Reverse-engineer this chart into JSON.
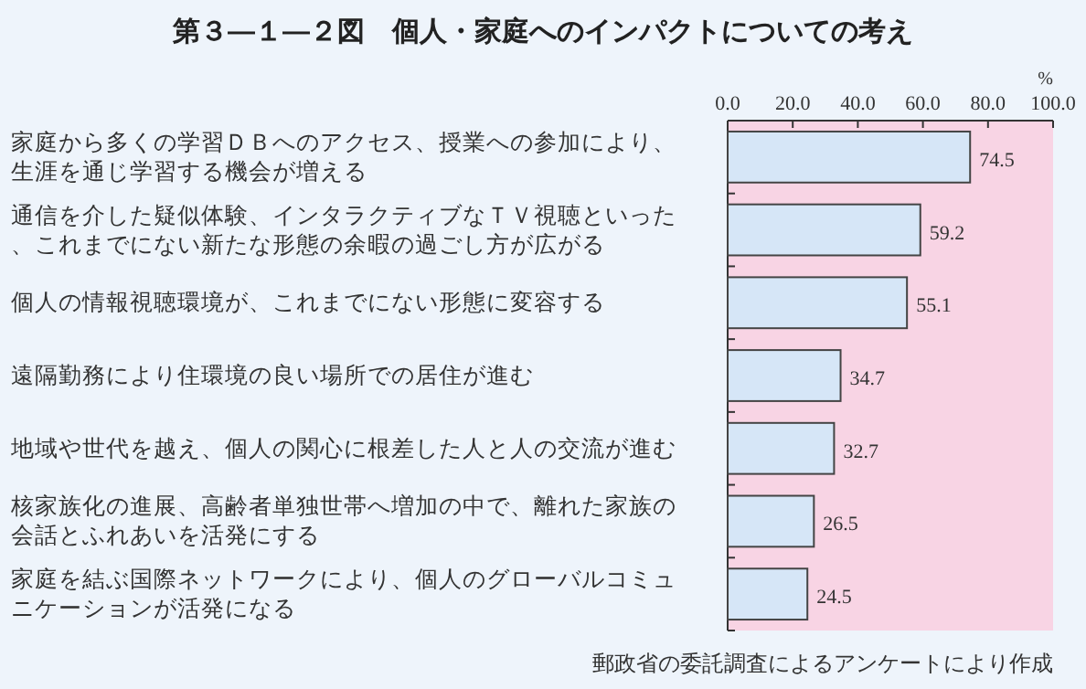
{
  "chart_data": {
    "type": "bar",
    "orientation": "horizontal",
    "title": "第３―１―２図　個人・家庭へのインパクトについての考え",
    "xlabel": "%",
    "categories": [
      "家庭から多くの学習ＤＢへのアクセス、授業への参加により、生涯を通じ学習する機会が増える",
      "通信を介した疑似体験、インタラクティブなＴＶ視聴といった、これまでにない新たな形態の余暇の過ごし方が広がる",
      "個人の情報視聴環境が、これまでにない形態に変容する",
      "遠隔勤務により住環境の良い場所での居住が進む",
      "地域や世代を越え、個人の関心に根差した人と人の交流が進む",
      "核家族化の進展、高齢者単独世帯へ増加の中で、離れた家族の会話とふれあいを活発にする",
      "家庭を結ぶ国際ネットワークにより、個人のグローバルコミュニケーションが活発になる"
    ],
    "values": [
      74.5,
      59.2,
      55.1,
      34.7,
      32.7,
      26.5,
      24.5
    ],
    "value_labels": [
      "74.5",
      "59.2",
      "55.1",
      "34.7",
      "32.7",
      "26.5",
      "24.5"
    ],
    "color": "#d6e6f7",
    "xlim": [
      0,
      100
    ],
    "xticks": [
      {
        "value": 0,
        "label": "0.0"
      },
      {
        "value": 20,
        "label": "20.0"
      },
      {
        "value": 40,
        "label": "40.0"
      },
      {
        "value": 60,
        "label": "60.0"
      },
      {
        "value": 80,
        "label": "80.0"
      },
      {
        "value": 100,
        "label": "100.0"
      }
    ],
    "annotations": [
      "郵政省の委託調査によるアンケートにより作成"
    ]
  }
}
